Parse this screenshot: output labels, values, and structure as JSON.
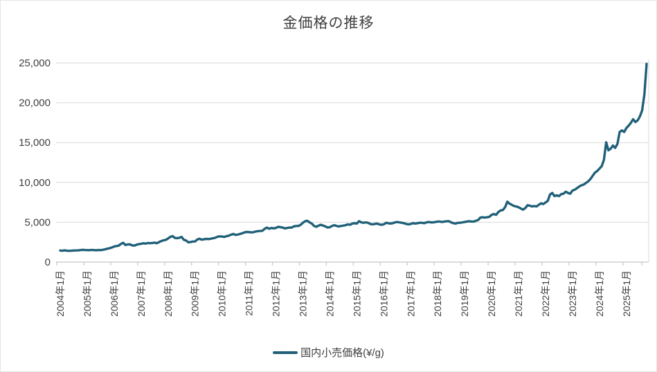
{
  "title": "金価格の推移",
  "legend": {
    "label": "国内小売価格(¥/g)"
  },
  "colors": {
    "series_line": "#1f6078",
    "gridline": "#d9d9d9",
    "axis_line": "#c6c6c6",
    "tick_label": "#3f3f3f",
    "border": "#e4e4e4"
  },
  "chart_data": {
    "type": "line",
    "title": "金価格の推移",
    "xlabel": "",
    "ylabel": "",
    "ylim": [
      0,
      25000
    ],
    "y_ticks": [
      0,
      5000,
      10000,
      15000,
      20000,
      25000
    ],
    "y_tick_labels": [
      "0",
      "5,000",
      "10,000",
      "15,000",
      "20,000",
      "25,000"
    ],
    "grid": true,
    "legend_position": "bottom",
    "x_start": "2004-01",
    "x_interval": "month",
    "x_tick_every": 12,
    "x_tick_labels": [
      "2004年1月",
      "2005年1月",
      "2006年1月",
      "2007年1月",
      "2008年1月",
      "2009年1月",
      "2010年1月",
      "2011年1月",
      "2012年1月",
      "2013年1月",
      "2014年1月",
      "2015年1月",
      "2016年1月",
      "2017年1月",
      "2018年1月",
      "2019年1月",
      "2020年1月",
      "2021年1月",
      "2022年1月",
      "2023年1月",
      "2024年1月",
      "2025年1月"
    ],
    "series": [
      {
        "name": "国内小売価格(¥/g)",
        "color": "#1f6078",
        "values": [
          1450,
          1430,
          1470,
          1430,
          1400,
          1430,
          1450,
          1460,
          1470,
          1500,
          1530,
          1510,
          1500,
          1490,
          1520,
          1500,
          1480,
          1510,
          1500,
          1540,
          1600,
          1680,
          1740,
          1830,
          1950,
          2010,
          2060,
          2280,
          2420,
          2150,
          2210,
          2230,
          2100,
          2070,
          2180,
          2250,
          2290,
          2360,
          2320,
          2390,
          2370,
          2390,
          2440,
          2360,
          2510,
          2640,
          2730,
          2790,
          2960,
          3160,
          3260,
          3030,
          3000,
          3040,
          3160,
          2800,
          2710,
          2480,
          2510,
          2580,
          2590,
          2830,
          2930,
          2810,
          2860,
          2910,
          2880,
          2930,
          2990,
          3050,
          3180,
          3230,
          3210,
          3150,
          3250,
          3310,
          3430,
          3530,
          3410,
          3450,
          3530,
          3610,
          3730,
          3780,
          3760,
          3730,
          3750,
          3830,
          3880,
          3900,
          3930,
          4180,
          4330,
          4180,
          4280,
          4230,
          4280,
          4430,
          4380,
          4330,
          4230,
          4280,
          4330,
          4330,
          4480,
          4530,
          4530,
          4680,
          4930,
          5130,
          5180,
          4980,
          4830,
          4530,
          4430,
          4580,
          4680,
          4580,
          4480,
          4330,
          4380,
          4530,
          4630,
          4530,
          4480,
          4530,
          4580,
          4630,
          4730,
          4680,
          4830,
          4880,
          4830,
          5130,
          4980,
          4930,
          4980,
          4930,
          4780,
          4730,
          4780,
          4830,
          4730,
          4680,
          4730,
          4930,
          4880,
          4830,
          4880,
          4980,
          5030,
          4980,
          4930,
          4880,
          4780,
          4730,
          4780,
          4880,
          4830,
          4880,
          4930,
          4930,
          4880,
          4980,
          5030,
          4980,
          4980,
          5030,
          5080,
          5080,
          5030,
          5080,
          5130,
          5130,
          4980,
          4880,
          4830,
          4930,
          4930,
          4980,
          5030,
          5080,
          5130,
          5080,
          5080,
          5180,
          5280,
          5580,
          5630,
          5580,
          5630,
          5680,
          5930,
          6030,
          5930,
          6280,
          6480,
          6530,
          6880,
          7580,
          7330,
          7180,
          7030,
          6980,
          6880,
          6730,
          6580,
          6780,
          7130,
          7080,
          6980,
          7030,
          6980,
          7180,
          7380,
          7280,
          7480,
          7680,
          8480,
          8680,
          8280,
          8380,
          8280,
          8530,
          8580,
          8830,
          8680,
          8580,
          8980,
          9080,
          9280,
          9480,
          9630,
          9730,
          9930,
          10130,
          10430,
          10830,
          11230,
          11430,
          11730,
          12030,
          12830,
          15030,
          14030,
          14230,
          14630,
          14330,
          14830,
          16330,
          16530,
          16330,
          16830,
          17130,
          17480,
          17930,
          17580,
          17780,
          18280,
          19030,
          21030,
          24880
        ]
      }
    ]
  }
}
